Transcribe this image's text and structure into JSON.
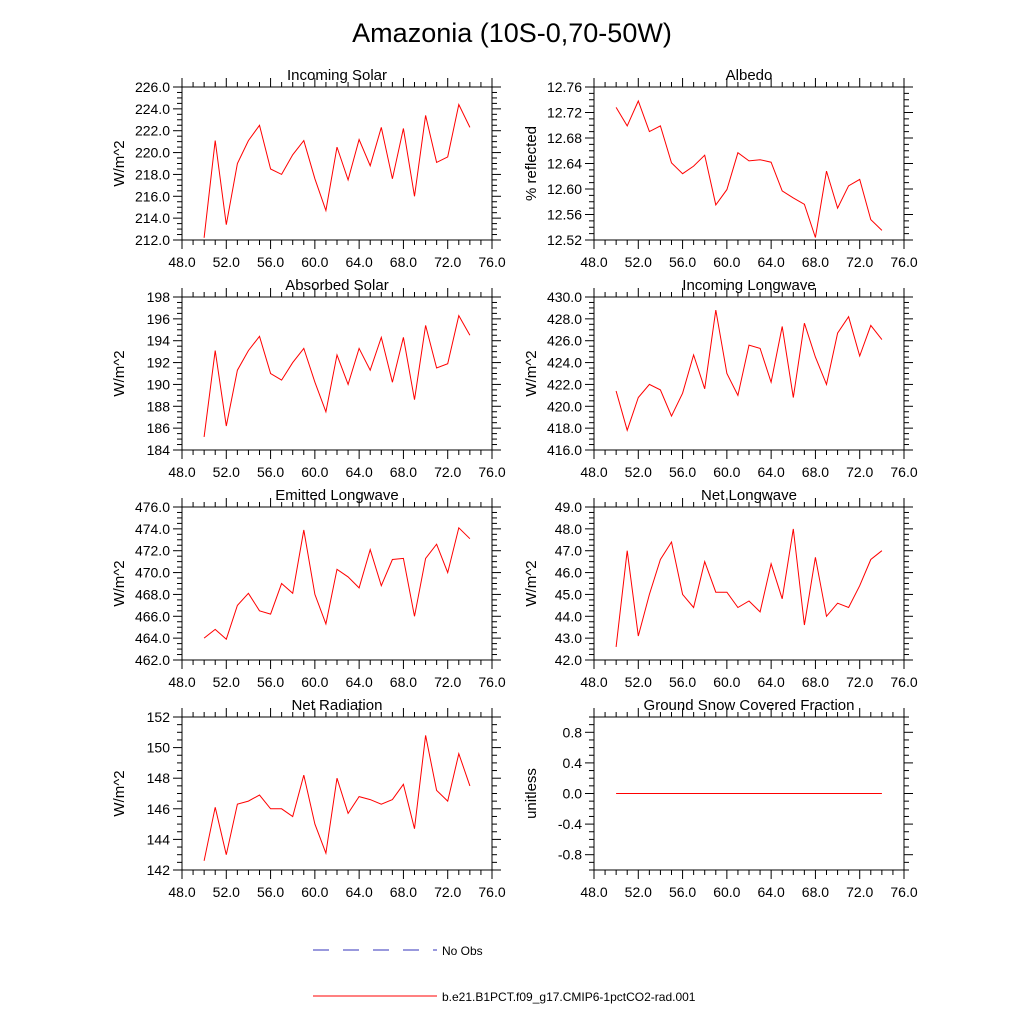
{
  "figure": {
    "title": "Amazonia (10S-0,70-50W)"
  },
  "legend": {
    "entries": [
      {
        "label": "No Obs",
        "color": "#3333bb",
        "dash": "dashed"
      },
      {
        "label": "b.e21.B1PCT.f09_g17.CMIP6-1pctCO2-rad.001",
        "color": "#ff0000",
        "dash": "solid"
      }
    ]
  },
  "chart_data": [
    {
      "type": "line",
      "title": "Incoming Solar",
      "ylabel": "W/m^2",
      "xlim": [
        48,
        76
      ],
      "ylim": [
        212,
        226
      ],
      "xticks": [
        48,
        52,
        56,
        60,
        64,
        68,
        72,
        76
      ],
      "xtick_labels": [
        "48.0",
        "52.0",
        "56.0",
        "60.0",
        "64.0",
        "68.0",
        "72.0",
        "76.0"
      ],
      "yticks": [
        212,
        214,
        216,
        218,
        220,
        222,
        224,
        226
      ],
      "ytick_labels": [
        "212.0",
        "214.0",
        "216.0",
        "218.0",
        "220.0",
        "222.0",
        "224.0",
        "226.0"
      ],
      "series": [
        {
          "color": "#ff0000",
          "x": [
            50,
            51,
            52,
            53,
            54,
            55,
            56,
            57,
            58,
            59,
            60,
            61,
            62,
            63,
            64,
            65,
            66,
            67,
            68,
            69,
            70,
            71,
            72,
            73,
            74
          ],
          "y": [
            212.2,
            221.1,
            213.4,
            219.0,
            221.1,
            222.5,
            218.5,
            218.0,
            219.8,
            221.1,
            217.6,
            214.7,
            220.5,
            217.5,
            221.2,
            218.8,
            222.3,
            217.6,
            222.2,
            216.0,
            223.4,
            219.1,
            219.6,
            224.4,
            222.3
          ]
        }
      ]
    },
    {
      "type": "line",
      "title": "Albedo",
      "ylabel": "% reflected",
      "xlim": [
        48,
        76
      ],
      "ylim": [
        12.52,
        12.76
      ],
      "xticks": [
        48,
        52,
        56,
        60,
        64,
        68,
        72,
        76
      ],
      "xtick_labels": [
        "48.0",
        "52.0",
        "56.0",
        "60.0",
        "64.0",
        "68.0",
        "72.0",
        "76.0"
      ],
      "yticks": [
        12.52,
        12.56,
        12.6,
        12.64,
        12.68,
        12.72,
        12.76
      ],
      "ytick_labels": [
        "12.52",
        "12.56",
        "12.60",
        "12.64",
        "12.68",
        "12.72",
        "12.76"
      ],
      "series": [
        {
          "color": "#ff0000",
          "x": [
            50,
            51,
            52,
            53,
            54,
            55,
            56,
            57,
            58,
            59,
            60,
            61,
            62,
            63,
            64,
            65,
            66,
            67,
            68,
            69,
            70,
            71,
            72,
            73,
            74
          ],
          "y": [
            12.728,
            12.699,
            12.738,
            12.69,
            12.699,
            12.641,
            12.624,
            12.636,
            12.653,
            12.575,
            12.599,
            12.657,
            12.644,
            12.646,
            12.642,
            12.597,
            12.586,
            12.576,
            12.524,
            12.628,
            12.57,
            12.605,
            12.615,
            12.552,
            12.535
          ]
        }
      ]
    },
    {
      "type": "line",
      "title": "Absorbed Solar",
      "ylabel": "W/m^2",
      "xlim": [
        48,
        76
      ],
      "ylim": [
        184,
        198
      ],
      "xticks": [
        48,
        52,
        56,
        60,
        64,
        68,
        72,
        76
      ],
      "xtick_labels": [
        "48.0",
        "52.0",
        "56.0",
        "60.0",
        "64.0",
        "68.0",
        "72.0",
        "76.0"
      ],
      "yticks": [
        184,
        186,
        188,
        190,
        192,
        194,
        196,
        198
      ],
      "ytick_labels": [
        "184",
        "186",
        "188",
        "190",
        "192",
        "194",
        "196",
        "198"
      ],
      "series": [
        {
          "color": "#ff0000",
          "x": [
            50,
            51,
            52,
            53,
            54,
            55,
            56,
            57,
            58,
            59,
            60,
            61,
            62,
            63,
            64,
            65,
            66,
            67,
            68,
            69,
            70,
            71,
            72,
            73,
            74
          ],
          "y": [
            185.2,
            193.1,
            186.2,
            191.3,
            193.1,
            194.4,
            191.0,
            190.4,
            192.0,
            193.3,
            190.2,
            187.5,
            192.7,
            190.0,
            193.3,
            191.3,
            194.3,
            190.2,
            194.3,
            188.6,
            195.4,
            191.5,
            191.9,
            196.3,
            194.5
          ]
        }
      ]
    },
    {
      "type": "line",
      "title": "Incoming Longwave",
      "ylabel": "W/m^2",
      "xlim": [
        48,
        76
      ],
      "ylim": [
        416,
        430
      ],
      "xticks": [
        48,
        52,
        56,
        60,
        64,
        68,
        72,
        76
      ],
      "xtick_labels": [
        "48.0",
        "52.0",
        "56.0",
        "60.0",
        "64.0",
        "68.0",
        "72.0",
        "76.0"
      ],
      "yticks": [
        416,
        418,
        420,
        422,
        424,
        426,
        428,
        430
      ],
      "ytick_labels": [
        "416.0",
        "418.0",
        "420.0",
        "422.0",
        "424.0",
        "426.0",
        "428.0",
        "430.0"
      ],
      "series": [
        {
          "color": "#ff0000",
          "x": [
            50,
            51,
            52,
            53,
            54,
            55,
            56,
            57,
            58,
            59,
            60,
            61,
            62,
            63,
            64,
            65,
            66,
            67,
            68,
            69,
            70,
            71,
            72,
            73,
            74
          ],
          "y": [
            421.4,
            417.8,
            420.8,
            422.0,
            421.5,
            419.1,
            421.2,
            424.7,
            421.6,
            428.8,
            423.0,
            421.0,
            425.6,
            425.3,
            422.2,
            427.3,
            420.8,
            427.6,
            424.5,
            422.0,
            426.7,
            428.2,
            424.6,
            427.4,
            426.1
          ]
        }
      ]
    },
    {
      "type": "line",
      "title": "Emitted Longwave",
      "ylabel": "W/m^2",
      "xlim": [
        48,
        76
      ],
      "ylim": [
        462,
        476
      ],
      "xticks": [
        48,
        52,
        56,
        60,
        64,
        68,
        72,
        76
      ],
      "xtick_labels": [
        "48.0",
        "52.0",
        "56.0",
        "60.0",
        "64.0",
        "68.0",
        "72.0",
        "76.0"
      ],
      "yticks": [
        462,
        464,
        466,
        468,
        470,
        472,
        474,
        476
      ],
      "ytick_labels": [
        "462.0",
        "464.0",
        "466.0",
        "468.0",
        "470.0",
        "472.0",
        "474.0",
        "476.0"
      ],
      "series": [
        {
          "color": "#ff0000",
          "x": [
            50,
            51,
            52,
            53,
            54,
            55,
            56,
            57,
            58,
            59,
            60,
            61,
            62,
            63,
            64,
            65,
            66,
            67,
            68,
            69,
            70,
            71,
            72,
            73,
            74
          ],
          "y": [
            464.0,
            464.8,
            463.9,
            467.0,
            468.1,
            466.5,
            466.2,
            469.0,
            468.1,
            473.9,
            468.0,
            465.3,
            470.3,
            469.6,
            468.6,
            472.1,
            468.8,
            471.2,
            471.3,
            466.0,
            471.3,
            472.6,
            470.0,
            474.1,
            473.1
          ]
        }
      ]
    },
    {
      "type": "line",
      "title": "Net Longwave",
      "ylabel": "W/m^2",
      "xlim": [
        48,
        76
      ],
      "ylim": [
        42,
        49
      ],
      "xticks": [
        48,
        52,
        56,
        60,
        64,
        68,
        72,
        76
      ],
      "xtick_labels": [
        "48.0",
        "52.0",
        "56.0",
        "60.0",
        "64.0",
        "68.0",
        "72.0",
        "76.0"
      ],
      "yticks": [
        42,
        43,
        44,
        45,
        46,
        47,
        48,
        49
      ],
      "ytick_labels": [
        "42.0",
        "43.0",
        "44.0",
        "45.0",
        "46.0",
        "47.0",
        "48.0",
        "49.0"
      ],
      "series": [
        {
          "color": "#ff0000",
          "x": [
            50,
            51,
            52,
            53,
            54,
            55,
            56,
            57,
            58,
            59,
            60,
            61,
            62,
            63,
            64,
            65,
            66,
            67,
            68,
            69,
            70,
            71,
            72,
            73,
            74
          ],
          "y": [
            42.6,
            47.0,
            43.1,
            45.0,
            46.6,
            47.4,
            45.0,
            44.4,
            46.5,
            45.1,
            45.1,
            44.4,
            44.7,
            44.2,
            46.4,
            44.8,
            48.0,
            43.6,
            46.7,
            44.0,
            44.6,
            44.4,
            45.4,
            46.6,
            47.0
          ]
        }
      ]
    },
    {
      "type": "line",
      "title": "Net Radiation",
      "ylabel": "W/m^2",
      "xlim": [
        48,
        76
      ],
      "ylim": [
        142,
        152
      ],
      "xticks": [
        48,
        52,
        56,
        60,
        64,
        68,
        72,
        76
      ],
      "xtick_labels": [
        "48.0",
        "52.0",
        "56.0",
        "60.0",
        "64.0",
        "68.0",
        "72.0",
        "76.0"
      ],
      "yticks": [
        142,
        144,
        146,
        148,
        150,
        152
      ],
      "ytick_labels": [
        "142",
        "144",
        "146",
        "148",
        "150",
        "152"
      ],
      "series": [
        {
          "color": "#ff0000",
          "x": [
            50,
            51,
            52,
            53,
            54,
            55,
            56,
            57,
            58,
            59,
            60,
            61,
            62,
            63,
            64,
            65,
            66,
            67,
            68,
            69,
            70,
            71,
            72,
            73,
            74
          ],
          "y": [
            142.6,
            146.1,
            143.0,
            146.3,
            146.5,
            146.9,
            146.0,
            146.0,
            145.5,
            148.2,
            145.0,
            143.1,
            148.0,
            145.7,
            146.8,
            146.6,
            146.3,
            146.6,
            147.6,
            144.7,
            150.8,
            147.2,
            146.5,
            149.6,
            147.5
          ]
        }
      ]
    },
    {
      "type": "line",
      "title": "Ground Snow Covered Fraction",
      "ylabel": "unitless",
      "xlim": [
        48,
        76
      ],
      "ylim": [
        -1,
        1
      ],
      "xticks": [
        48,
        52,
        56,
        60,
        64,
        68,
        72,
        76
      ],
      "xtick_labels": [
        "48.0",
        "52.0",
        "56.0",
        "60.0",
        "64.0",
        "68.0",
        "72.0",
        "76.0"
      ],
      "yticks": [
        -0.8,
        -0.4,
        0,
        0.4,
        0.8
      ],
      "ytick_labels": [
        "-0.8",
        "-0.4",
        "0.0",
        "0.4",
        "0.8"
      ],
      "series": [
        {
          "color": "#ff0000",
          "x": [
            50,
            51,
            52,
            53,
            54,
            55,
            56,
            57,
            58,
            59,
            60,
            61,
            62,
            63,
            64,
            65,
            66,
            67,
            68,
            69,
            70,
            71,
            72,
            73,
            74
          ],
          "y": [
            0,
            0,
            0,
            0,
            0,
            0,
            0,
            0,
            0,
            0,
            0,
            0,
            0,
            0,
            0,
            0,
            0,
            0,
            0,
            0,
            0,
            0,
            0,
            0,
            0
          ]
        }
      ]
    }
  ]
}
